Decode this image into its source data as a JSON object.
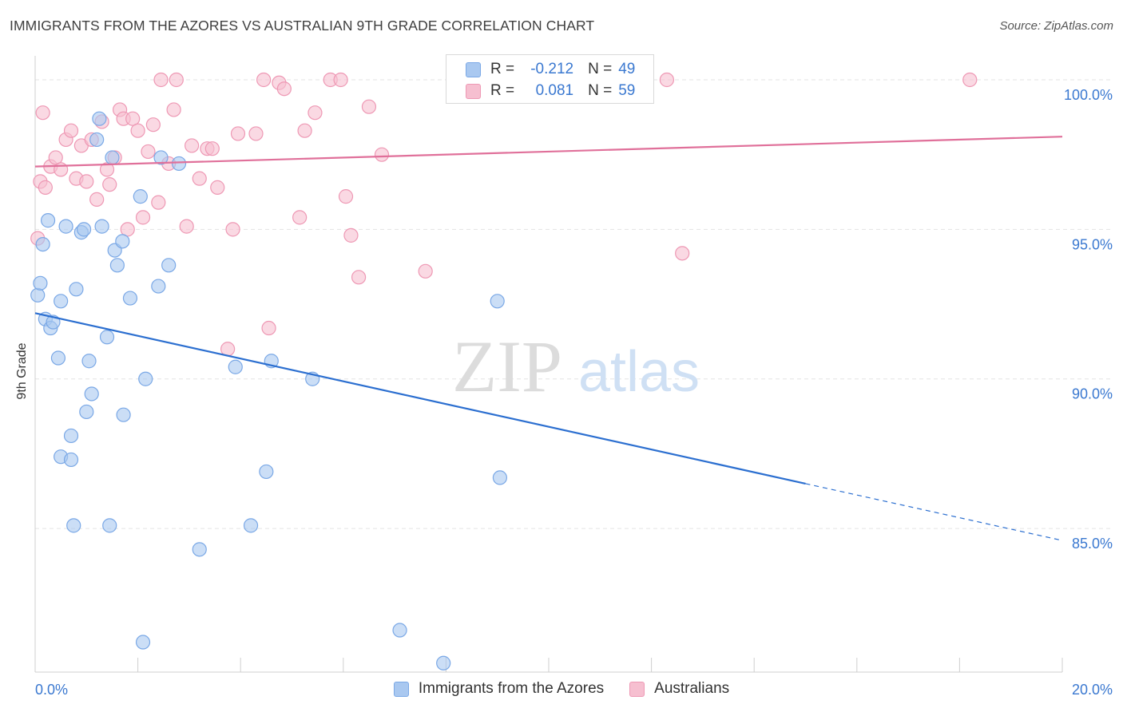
{
  "header": {
    "title": "IMMIGRANTS FROM THE AZORES VS AUSTRALIAN 9TH GRADE CORRELATION CHART",
    "source": "Source: ZipAtlas.com"
  },
  "watermark": {
    "zip": "ZIP",
    "atlas": "atlas"
  },
  "legend": {
    "rows": [
      {
        "r_label": "R =",
        "r_value": "-0.212",
        "n_label": "N =",
        "n_value": "49"
      },
      {
        "r_label": "R =",
        "r_value": "0.081",
        "n_label": "N =",
        "n_value": "59"
      }
    ]
  },
  "bottom_legend": {
    "items": [
      {
        "label": "Immigrants from the Azores"
      },
      {
        "label": "Australians"
      }
    ]
  },
  "colors": {
    "blue_fill": "#a9c8f0",
    "blue_stroke": "#7aa8e6",
    "blue_line": "#2c6fd0",
    "pink_fill": "#f6bfd0",
    "pink_stroke": "#ee98b4",
    "pink_line": "#e0709a",
    "tick_text": "#3a78d0",
    "grid": "#e3e3e3"
  },
  "chart_data": {
    "type": "scatter",
    "title": "IMMIGRANTS FROM THE AZORES VS AUSTRALIAN 9TH GRADE CORRELATION CHART",
    "xlabel": "",
    "ylabel": "9th Grade",
    "xlim": [
      0,
      20
    ],
    "ylim": [
      80.2,
      100.8
    ],
    "x_tick_labels": [
      "0.0%",
      "20.0%"
    ],
    "x_tick_values": [
      0,
      20
    ],
    "y_tick_labels": [
      "85.0%",
      "90.0%",
      "95.0%",
      "100.0%"
    ],
    "y_tick_values": [
      85,
      90,
      95,
      100
    ],
    "grid": true,
    "legend_position": "top-center",
    "series": [
      {
        "name": "Immigrants from the Azores",
        "r": -0.212,
        "n": 49,
        "trend": {
          "x0": 0,
          "y0": 92.2,
          "x1": 15,
          "y1": 86.5,
          "dashed_to_x": 20,
          "dashed_to_y": 84.6
        },
        "points": [
          [
            0.05,
            92.8
          ],
          [
            0.1,
            93.2
          ],
          [
            0.15,
            94.5
          ],
          [
            0.2,
            92.0
          ],
          [
            0.25,
            95.3
          ],
          [
            0.3,
            91.7
          ],
          [
            0.35,
            91.9
          ],
          [
            0.45,
            90.7
          ],
          [
            0.5,
            92.6
          ],
          [
            0.6,
            95.1
          ],
          [
            0.7,
            88.1
          ],
          [
            0.75,
            85.1
          ],
          [
            0.8,
            93.0
          ],
          [
            0.9,
            94.9
          ],
          [
            0.95,
            95.0
          ],
          [
            1.0,
            88.9
          ],
          [
            1.05,
            90.6
          ],
          [
            1.1,
            89.5
          ],
          [
            1.2,
            98.0
          ],
          [
            1.25,
            98.7
          ],
          [
            1.3,
            95.1
          ],
          [
            1.4,
            91.4
          ],
          [
            1.45,
            85.1
          ],
          [
            1.5,
            97.4
          ],
          [
            1.55,
            94.3
          ],
          [
            1.6,
            93.8
          ],
          [
            1.7,
            94.6
          ],
          [
            1.72,
            88.8
          ],
          [
            1.85,
            92.7
          ],
          [
            2.05,
            96.1
          ],
          [
            2.1,
            81.2
          ],
          [
            2.15,
            90.0
          ],
          [
            2.4,
            93.1
          ],
          [
            2.45,
            97.4
          ],
          [
            2.6,
            93.8
          ],
          [
            2.8,
            97.2
          ],
          [
            3.2,
            84.3
          ],
          [
            3.9,
            90.4
          ],
          [
            4.2,
            85.1
          ],
          [
            4.5,
            86.9
          ],
          [
            4.6,
            90.6
          ],
          [
            5.4,
            90.0
          ],
          [
            7.1,
            81.6
          ],
          [
            7.95,
            80.5
          ],
          [
            9.0,
            92.6
          ],
          [
            9.05,
            86.7
          ],
          [
            11.0,
            100.0
          ],
          [
            0.5,
            87.4
          ],
          [
            0.7,
            87.3
          ]
        ]
      },
      {
        "name": "Australians",
        "r": 0.081,
        "n": 59,
        "trend": {
          "x0": 0,
          "y0": 97.1,
          "x1": 20,
          "y1": 98.1
        },
        "points": [
          [
            0.05,
            94.7
          ],
          [
            0.1,
            96.6
          ],
          [
            0.2,
            96.4
          ],
          [
            0.3,
            97.1
          ],
          [
            0.4,
            97.4
          ],
          [
            0.5,
            97.0
          ],
          [
            0.6,
            98.0
          ],
          [
            0.7,
            98.3
          ],
          [
            0.8,
            96.7
          ],
          [
            0.9,
            97.8
          ],
          [
            1.0,
            96.6
          ],
          [
            1.1,
            98.0
          ],
          [
            1.2,
            96.0
          ],
          [
            1.3,
            98.6
          ],
          [
            1.4,
            97.0
          ],
          [
            1.45,
            96.5
          ],
          [
            1.55,
            97.4
          ],
          [
            1.65,
            99.0
          ],
          [
            1.72,
            98.7
          ],
          [
            1.8,
            95.0
          ],
          [
            1.9,
            98.7
          ],
          [
            2.0,
            98.3
          ],
          [
            2.1,
            95.4
          ],
          [
            2.2,
            97.6
          ],
          [
            2.3,
            98.5
          ],
          [
            2.4,
            95.9
          ],
          [
            2.45,
            100.0
          ],
          [
            2.6,
            97.2
          ],
          [
            2.7,
            99.0
          ],
          [
            2.75,
            100.0
          ],
          [
            2.95,
            95.1
          ],
          [
            3.05,
            97.8
          ],
          [
            3.2,
            96.7
          ],
          [
            3.35,
            97.7
          ],
          [
            3.45,
            97.7
          ],
          [
            3.55,
            96.4
          ],
          [
            3.75,
            91.0
          ],
          [
            3.85,
            95.0
          ],
          [
            3.95,
            98.2
          ],
          [
            4.3,
            98.2
          ],
          [
            4.45,
            100.0
          ],
          [
            4.55,
            91.7
          ],
          [
            4.75,
            99.9
          ],
          [
            4.85,
            99.7
          ],
          [
            5.15,
            95.4
          ],
          [
            5.25,
            98.3
          ],
          [
            5.45,
            98.9
          ],
          [
            5.75,
            100.0
          ],
          [
            5.95,
            100.0
          ],
          [
            6.05,
            96.1
          ],
          [
            6.15,
            94.8
          ],
          [
            6.3,
            93.4
          ],
          [
            6.5,
            99.1
          ],
          [
            6.75,
            97.5
          ],
          [
            7.6,
            93.6
          ],
          [
            12.3,
            100.0
          ],
          [
            12.6,
            94.2
          ],
          [
            18.2,
            100.0
          ],
          [
            0.15,
            98.9
          ]
        ]
      }
    ]
  }
}
